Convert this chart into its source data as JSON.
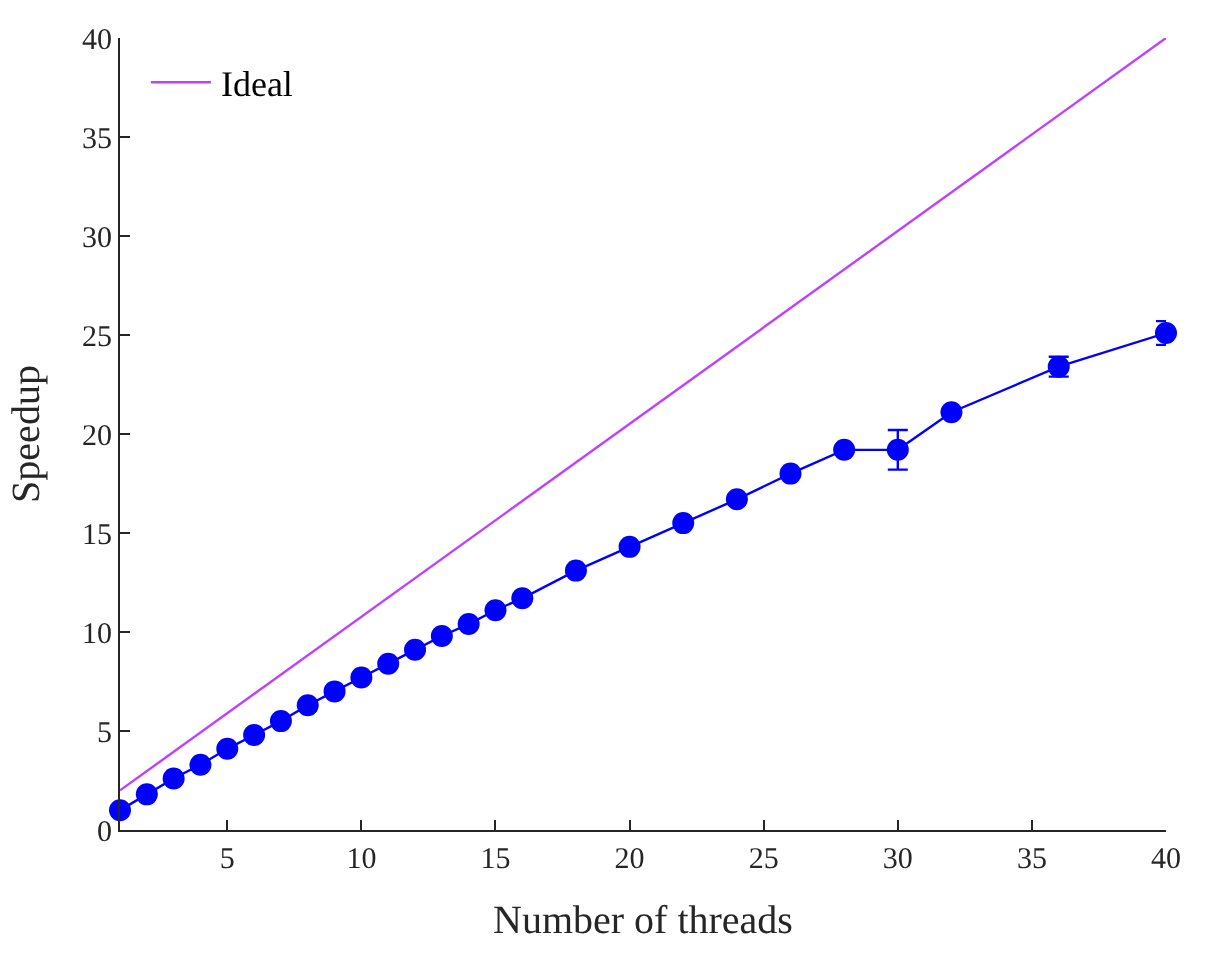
{
  "chart_data": {
    "type": "line",
    "xlabel": "Number of threads",
    "ylabel": "Speedup",
    "xlim": [
      1,
      40
    ],
    "xticks": [
      5,
      10,
      15,
      20,
      25,
      30,
      35,
      40
    ],
    "ylim": [
      0,
      40
    ],
    "yticks": [
      0,
      5,
      10,
      15,
      20,
      25,
      30,
      35,
      40
    ],
    "legend": "top left",
    "series": [
      {
        "color": "#0000ff",
        "marker": "circle",
        "x": [
          1,
          2,
          3,
          4,
          5,
          6,
          7,
          8,
          9,
          10,
          11,
          12,
          13,
          14,
          15,
          16,
          18,
          20,
          22,
          24,
          26,
          28,
          30,
          32,
          36,
          40
        ],
        "values": [
          1.0,
          1.8,
          2.6,
          3.3,
          4.1,
          4.8,
          5.5,
          6.3,
          7.0,
          7.7,
          8.4,
          9.1,
          9.8,
          10.4,
          11.1,
          11.7,
          13.1,
          14.3,
          15.5,
          16.7,
          18.0,
          19.2,
          19.2,
          21.1,
          23.4,
          25.1
        ],
        "errors": [
          null,
          null,
          null,
          null,
          null,
          null,
          null,
          null,
          null,
          null,
          null,
          null,
          null,
          null,
          null,
          null,
          null,
          null,
          null,
          null,
          null,
          null,
          1.0,
          null,
          0.5,
          0.6
        ]
      },
      {
        "name": "Ideal",
        "color": "#bf40ff",
        "marker": "none",
        "x": [
          1,
          40
        ],
        "values": [
          2,
          40
        ]
      }
    ]
  }
}
